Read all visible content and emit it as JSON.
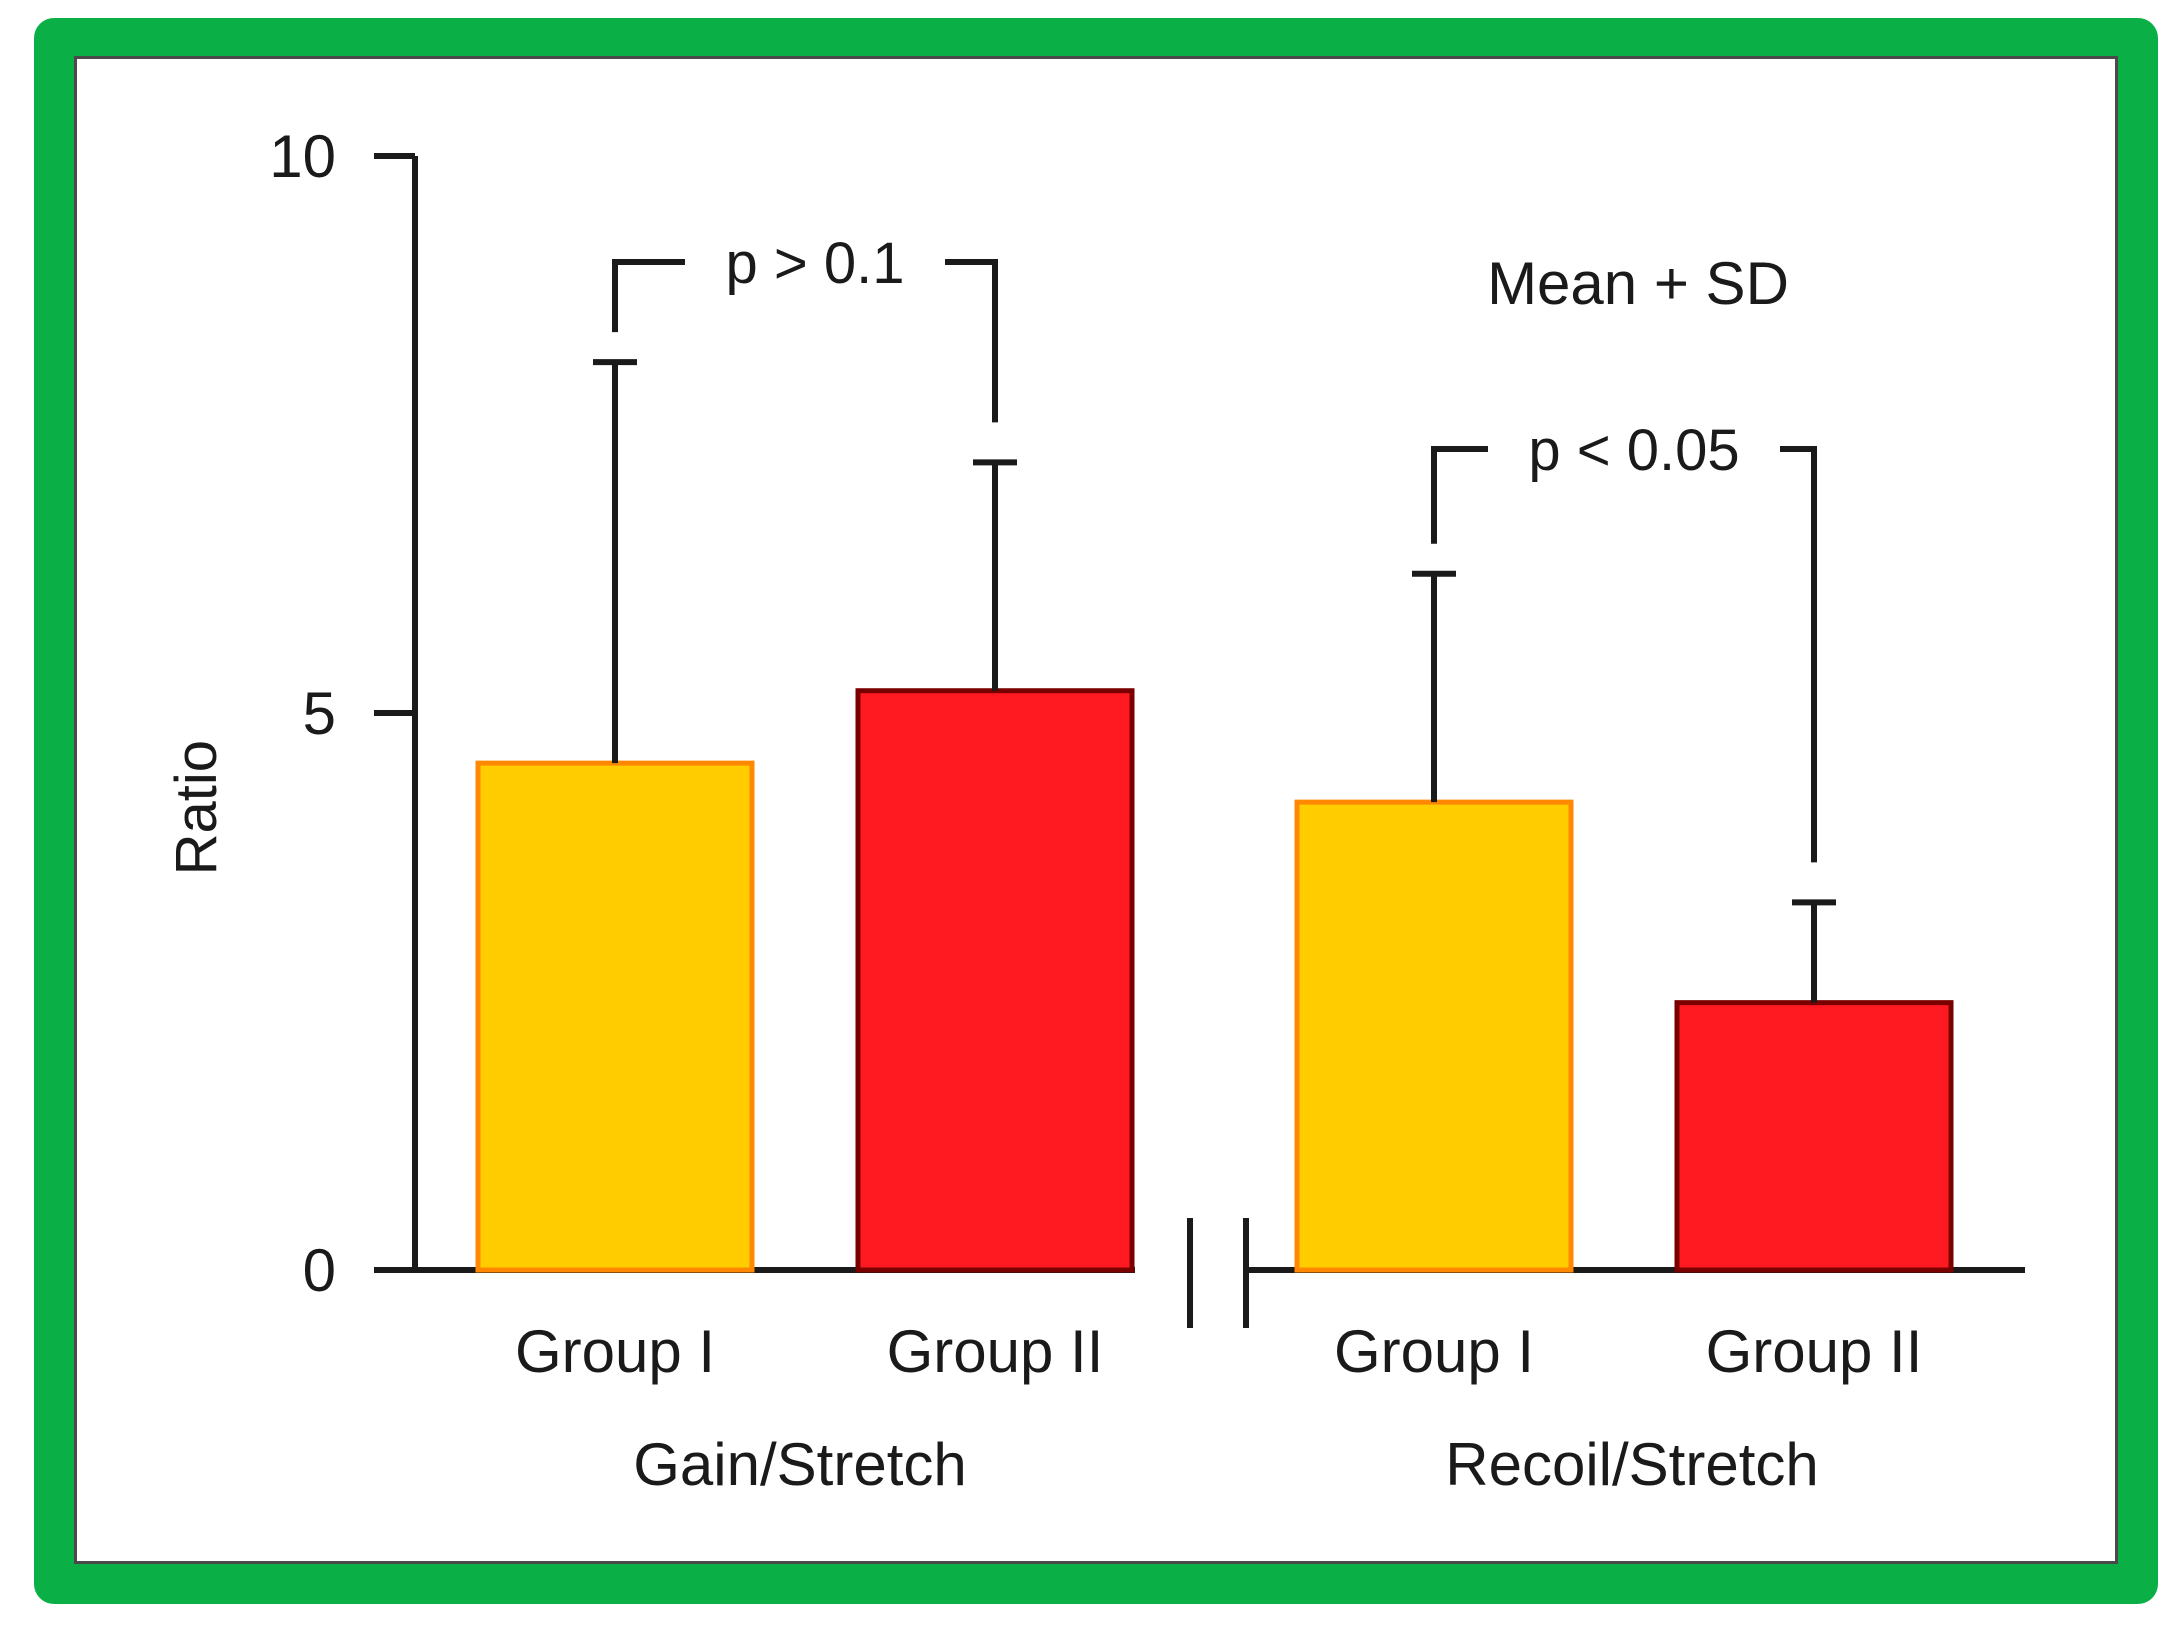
{
  "chart_data": {
    "type": "bar",
    "ylabel": "Ratio",
    "ylim": [
      0,
      10
    ],
    "yticks": [
      0,
      5,
      10
    ],
    "annotation": "Mean + SD",
    "groups": [
      {
        "label": "Gain/Stretch",
        "bars": [
          {
            "category": "Group I",
            "value": 4.55,
            "sd": 3.6,
            "fill": "#ffcc00",
            "stroke": "#ff8800"
          },
          {
            "category": "Group II",
            "value": 5.2,
            "sd": 2.05,
            "fill": "#ff1a22",
            "stroke": "#7a0000"
          }
        ],
        "comparison": "p > 0.1"
      },
      {
        "label": "Recoil/Stretch",
        "bars": [
          {
            "category": "Group I",
            "value": 4.2,
            "sd": 2.05,
            "fill": "#ffcc00",
            "stroke": "#ff8800"
          },
          {
            "category": "Group II",
            "value": 2.4,
            "sd": 0.9,
            "fill": "#ff1a22",
            "stroke": "#7a0000"
          }
        ],
        "comparison": "p < 0.05"
      }
    ]
  }
}
